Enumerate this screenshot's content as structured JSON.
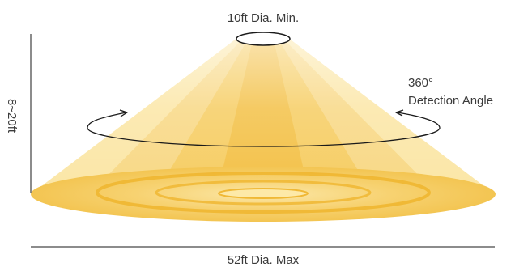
{
  "labels": {
    "top": "10ft Dia. Min.",
    "angle_value": "360°",
    "angle_caption": "Detection Angle",
    "height": "8~20ft",
    "bottom": "52ft Dia. Max"
  },
  "colors": {
    "cone_light": "#fdf2cf",
    "cone_mid": "#f8d576",
    "cone_core": "#f3b72b",
    "base_outer": "#f6cc5e",
    "base_ring": "#efb52e",
    "line": "#1a1a1a",
    "label": "#3a3a3a"
  }
}
